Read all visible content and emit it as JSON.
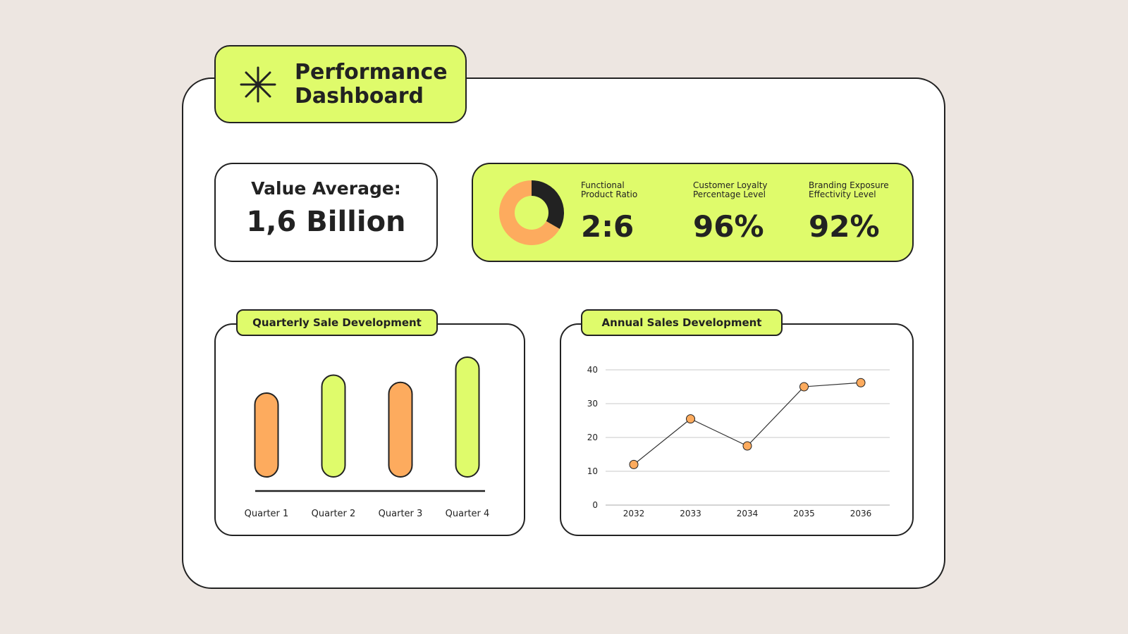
{
  "header": {
    "title_line1": "Performance",
    "title_line2": "Dashboard",
    "icon": "asterisk-icon"
  },
  "value_average": {
    "label": "Value Average:",
    "value": "1,6 Billion"
  },
  "kpis": [
    {
      "label_line1": "Functional",
      "label_line2": "Product Ratio",
      "value": "2:6"
    },
    {
      "label_line1": "Customer Loyalty",
      "label_line2": "Percentage Level",
      "value": "96%"
    },
    {
      "label_line1": "Branding Exposure",
      "label_line2": "Effectivity Level",
      "value": "92%"
    }
  ],
  "colors": {
    "lime": "#dffb6b",
    "orange": "#fdab5e",
    "dark": "#222222",
    "background": "#ede6e1"
  },
  "chart_data": [
    {
      "type": "pie",
      "variant": "donut",
      "values": [
        2,
        4
      ],
      "colors": [
        "#222222",
        "#fdab5e"
      ]
    },
    {
      "type": "bar",
      "title": "Quarterly Sale Development",
      "categories": [
        "Quarter 1",
        "Quarter 2",
        "Quarter 3",
        "Quarter 4"
      ],
      "values": [
        70,
        85,
        79,
        100
      ],
      "colors": [
        "#fdab5e",
        "#dffb6b",
        "#fdab5e",
        "#dffb6b"
      ],
      "grid": false
    },
    {
      "type": "line",
      "title": "Annual Sales Development",
      "x": [
        "2032",
        "2033",
        "2034",
        "2035",
        "2036"
      ],
      "y": [
        12,
        25.5,
        17.5,
        35,
        36.2
      ],
      "ylim": [
        0,
        40
      ],
      "yticks": [
        0,
        10,
        20,
        30,
        40
      ],
      "grid": true,
      "marker_color": "#fdab5e"
    }
  ]
}
